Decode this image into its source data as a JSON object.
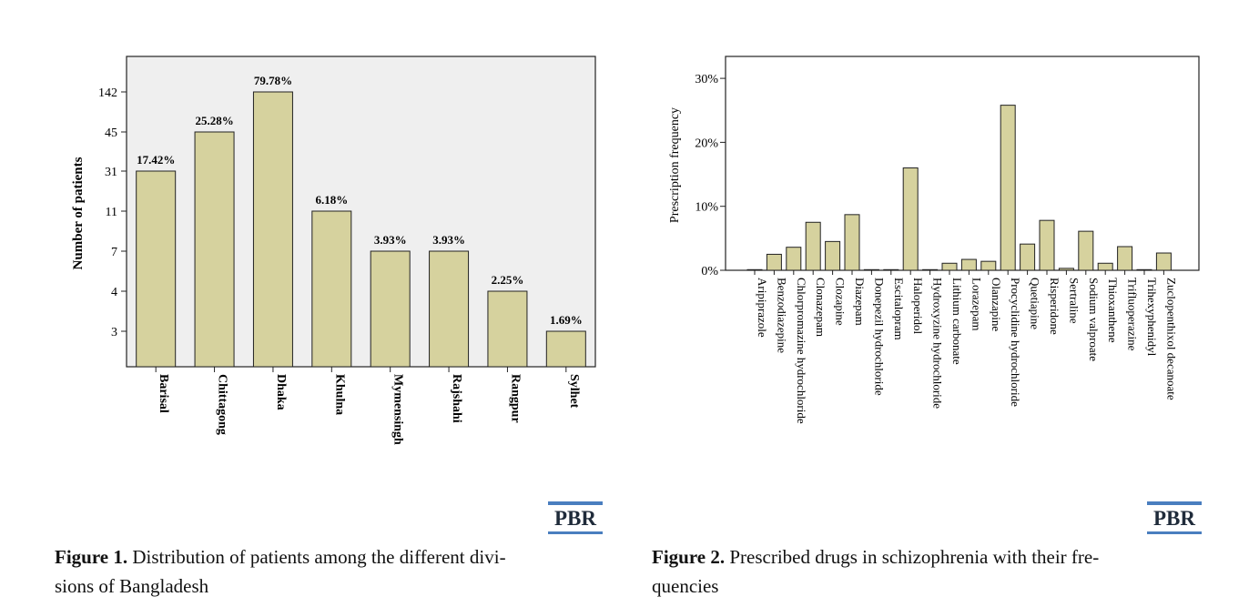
{
  "chart_data": [
    {
      "type": "bar",
      "ylabel": "Number of patients",
      "xlabel": "",
      "y_tick_labels": [
        "3",
        "4",
        "7",
        "11",
        "31",
        "45",
        "142"
      ],
      "categories": [
        "Barisal",
        "Chittagong",
        "Dhaka",
        "Khulna",
        "Mymensingh",
        "Rajshahi",
        "Rangpur",
        "Sylhet"
      ],
      "values": [
        31,
        45,
        142,
        11,
        7,
        7,
        4,
        3
      ],
      "data_labels": [
        "17.42%",
        "25.28%",
        "79.78%",
        "6.18%",
        "3.93%",
        "3.93%",
        "2.25%",
        "1.69%"
      ],
      "bar_color": "#d6d29e",
      "background": "#efefef",
      "grid": false
    },
    {
      "type": "bar",
      "ylabel": "Prescription frequency",
      "xlabel": "",
      "y_tick_labels": [
        "0%",
        "10%",
        "20%",
        "30%"
      ],
      "ylim": [
        0,
        33
      ],
      "categories": [
        "Aripiprazole",
        "Benzodiazepine",
        "Chlorpromazine hydrochloride",
        "Clonazepam",
        "Clozapine",
        "Diazepam",
        "Donepezil hydrochloride",
        "Escitalopram",
        "Haloperidol",
        "Hydroxyzine hydrochloride",
        "Lithium carbonate",
        "Lorazepam",
        "Olanzapine",
        "Procyclidine hydrochloride",
        "Quetiapine",
        "Risperidone",
        "Sertraline",
        "Sodium valproate",
        "Thioxanthene",
        "Trifluoperazine",
        "Trihexyphenidyl",
        "Zuclopenthixol decanoate"
      ],
      "values": [
        0.1,
        2.5,
        3.6,
        7.5,
        4.5,
        8.7,
        0.1,
        0.1,
        16.0,
        0.1,
        1.1,
        1.7,
        1.4,
        25.8,
        4.1,
        7.8,
        0.3,
        6.1,
        1.1,
        3.7,
        0.1,
        2.7
      ],
      "bar_color": "#d6d29e",
      "background": "#ffffff",
      "grid": false
    }
  ],
  "logos": {
    "left": "PBR",
    "right": "PBR"
  },
  "captions": {
    "fig1_label": "Figure 1.",
    "fig1_line1": "Distribution of patients among the different divi-",
    "fig1_line2": "sions of Bangladesh",
    "fig2_label": "Figure 2.",
    "fig2_line1": "Prescribed drugs in schizophrenia with their fre-",
    "fig2_line2": "quencies"
  }
}
